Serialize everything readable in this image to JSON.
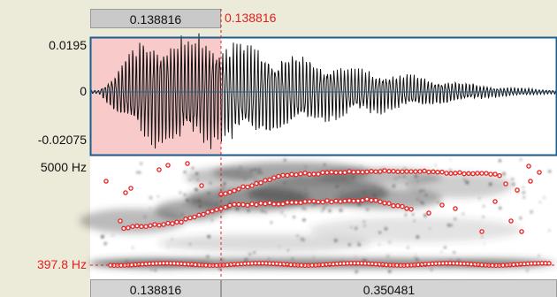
{
  "window": {
    "header": {
      "selection_duration": "0.138816",
      "cursor_time": "0.138816"
    },
    "waveform": {
      "amp_max_label": "0.0195",
      "amp_zero_label": "0",
      "amp_min_label": "-0.02075"
    },
    "spectrogram": {
      "freq_max_label": "5000 Hz",
      "cursor_freq_label": "397.8 Hz"
    },
    "footer": {
      "selection_duration": "0.138816",
      "remaining_duration": "0.350481"
    }
  },
  "colors": {
    "selection_fill": "#f8caca",
    "cursor": "#e02020",
    "frame": "#1a5f8f",
    "wave": "#111111",
    "formant": "#e82020"
  }
}
